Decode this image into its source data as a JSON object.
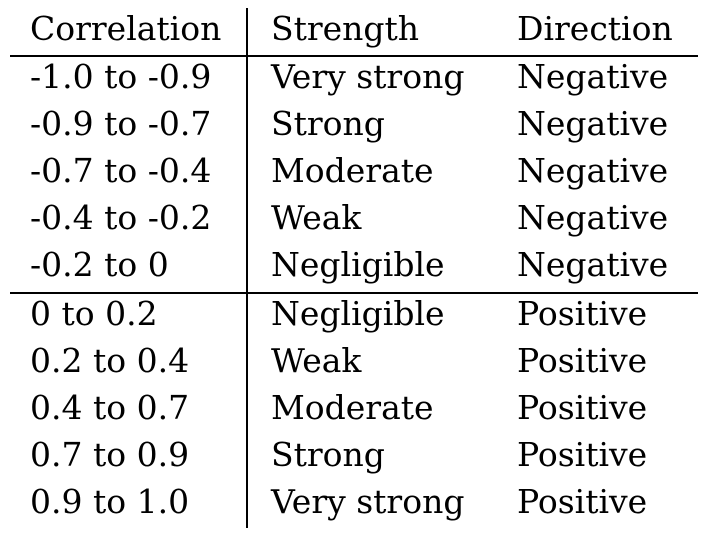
{
  "table": {
    "headers": [
      "Correlation",
      "Strength",
      "Direction"
    ],
    "rows": [
      [
        "-1.0 to -0.9",
        "Very strong",
        "Negative"
      ],
      [
        "-0.9 to -0.7",
        "Strong",
        "Negative"
      ],
      [
        "-0.7 to -0.4",
        "Moderate",
        "Negative"
      ],
      [
        "-0.4 to -0.2",
        "Weak",
        "Negative"
      ],
      [
        "-0.2 to 0",
        "Negligible",
        "Negative"
      ],
      [
        "0 to 0.2",
        "Negligible",
        "Positive"
      ],
      [
        "0.2 to 0.4",
        "Weak",
        "Positive"
      ],
      [
        "0.4 to 0.7",
        "Moderate",
        "Positive"
      ],
      [
        "0.7 to 0.9",
        "Strong",
        "Positive"
      ],
      [
        "0.9 to 1.0",
        "Very strong",
        "Positive"
      ]
    ]
  }
}
